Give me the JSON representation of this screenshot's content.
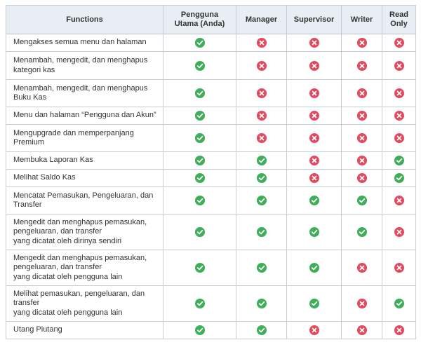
{
  "headers": [
    "Functions",
    "Pengguna\nUtama (Anda)",
    "Manager",
    "Supervisor",
    "Writer",
    "Read\nOnly"
  ],
  "colors": {
    "yes": "#3fae5a",
    "no": "#e34a5e",
    "header_bg": "#e8eef4",
    "border": "#c5cdd6"
  },
  "icons": {
    "yes": "check-circle-icon",
    "no": "x-circle-icon"
  },
  "rows": [
    {
      "label": "Mengakses semua menu dan halaman",
      "access": [
        "yes",
        "no",
        "no",
        "no",
        "no"
      ]
    },
    {
      "label": "Menambah, mengedit, dan menghapus\nkategori kas",
      "access": [
        "yes",
        "no",
        "no",
        "no",
        "no"
      ]
    },
    {
      "label": "Menambah, mengedit, dan menghapus\nBuku Kas",
      "access": [
        "yes",
        "no",
        "no",
        "no",
        "no"
      ]
    },
    {
      "label": "Menu dan halaman “Pengguna dan Akun”",
      "access": [
        "yes",
        "no",
        "no",
        "no",
        "no"
      ]
    },
    {
      "label": "Mengupgrade dan memperpanjang\nPremium",
      "access": [
        "yes",
        "no",
        "no",
        "no",
        "no"
      ]
    },
    {
      "label": "Membuka Laporan Kas",
      "access": [
        "yes",
        "yes",
        "no",
        "no",
        "yes"
      ]
    },
    {
      "label": "Melihat Saldo Kas",
      "access": [
        "yes",
        "yes",
        "no",
        "no",
        "yes"
      ]
    },
    {
      "label": "Mencatat Pemasukan, Pengeluaran, dan\nTransfer",
      "access": [
        "yes",
        "yes",
        "yes",
        "yes",
        "no"
      ]
    },
    {
      "label": "Mengedit dan menghapus pemasukan,\npengeluaran, dan transfer\nyang dicatat oleh dirinya sendiri",
      "access": [
        "yes",
        "yes",
        "yes",
        "yes",
        "no"
      ]
    },
    {
      "label": "Mengedit dan menghapus pemasukan,\npengeluaran, dan transfer\nyang dicatat oleh pengguna lain",
      "access": [
        "yes",
        "yes",
        "yes",
        "no",
        "no"
      ]
    },
    {
      "label": "Melihat pemasukan, pengeluaran, dan\ntransfer\nyang dicatat oleh pengguna lain",
      "access": [
        "yes",
        "yes",
        "yes",
        "no",
        "yes"
      ]
    },
    {
      "label": "Utang Piutang",
      "access": [
        "yes",
        "yes",
        "no",
        "no",
        "no"
      ]
    }
  ]
}
